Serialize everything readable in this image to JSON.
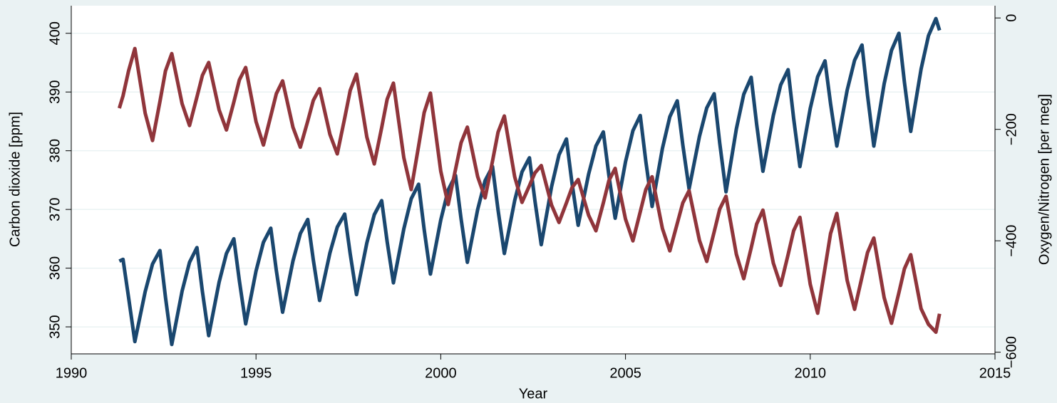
{
  "chart_data": {
    "type": "line",
    "x_label": "Year",
    "y_label": "Carbon dioxide [ppm]",
    "y2_label": "Oxygen/Nitrogen [per meg]",
    "x": [
      1991.3,
      1991.4,
      1991.55,
      1991.72,
      1992,
      1992.2,
      1992.4,
      1992.55,
      1992.72,
      1993,
      1993.2,
      1993.4,
      1993.55,
      1993.72,
      1994,
      1994.2,
      1994.4,
      1994.55,
      1994.72,
      1995,
      1995.2,
      1995.4,
      1995.55,
      1995.72,
      1996,
      1996.2,
      1996.4,
      1996.55,
      1996.72,
      1997,
      1997.2,
      1997.4,
      1997.55,
      1997.72,
      1998,
      1998.2,
      1998.4,
      1998.55,
      1998.72,
      1999,
      1999.2,
      1999.4,
      1999.55,
      1999.72,
      2000,
      2000.2,
      2000.4,
      2000.55,
      2000.72,
      2001,
      2001.2,
      2001.4,
      2001.55,
      2001.72,
      2002,
      2002.2,
      2002.4,
      2002.55,
      2002.72,
      2003,
      2003.2,
      2003.4,
      2003.55,
      2003.72,
      2004,
      2004.2,
      2004.4,
      2004.55,
      2004.72,
      2005,
      2005.2,
      2005.4,
      2005.55,
      2005.72,
      2006,
      2006.2,
      2006.4,
      2006.55,
      2006.72,
      2007,
      2007.2,
      2007.4,
      2007.55,
      2007.72,
      2008,
      2008.2,
      2008.4,
      2008.55,
      2008.72,
      2009,
      2009.2,
      2009.4,
      2009.55,
      2009.72,
      2010,
      2010.2,
      2010.4,
      2010.55,
      2010.72,
      2011,
      2011.2,
      2011.4,
      2011.55,
      2011.72,
      2012,
      2012.2,
      2012.4,
      2012.55,
      2012.72,
      2013,
      2013.2,
      2013.4,
      2013.5
    ],
    "series": [
      {
        "color": "#1a476f",
        "axis": "y",
        "values": [
          361.2,
          361.5,
          355,
          347.5,
          356.0,
          360.7,
          363,
          355,
          347,
          356.1,
          361.0,
          363.5,
          356,
          348.5,
          357.6,
          362.5,
          365,
          357.8,
          350.5,
          359.5,
          364.4,
          366.8,
          359.6,
          352.5,
          361.2,
          365.9,
          368.3,
          361.4,
          354.5,
          362.6,
          367.0,
          369.2,
          362.4,
          355.5,
          364.3,
          369.1,
          371.5,
          364.5,
          357.5,
          366.7,
          371.8,
          374.3,
          366.6,
          359,
          368.2,
          373.3,
          375.8,
          368.4,
          361,
          370.0,
          374.9,
          377.3,
          369.9,
          362.5,
          371.5,
          376.4,
          378.8,
          371.4,
          364,
          373.9,
          379.3,
          382,
          374.6,
          367.3,
          376.0,
          380.8,
          383.2,
          375.8,
          368.5,
          378.1,
          383.4,
          386,
          378.2,
          370.5,
          380.4,
          385.8,
          388.5,
          381,
          373.5,
          382.4,
          387.3,
          389.7,
          381.3,
          373,
          383.7,
          389.6,
          392.5,
          384.5,
          376.5,
          386.0,
          391.2,
          393.8,
          385.5,
          377.3,
          387.2,
          392.6,
          395.3,
          388,
          380.8,
          390.3,
          395.4,
          398,
          389.4,
          380.8,
          391.4,
          397.1,
          400,
          391.6,
          383.3,
          393.9,
          399.6,
          402.5,
          400.5
        ]
      },
      {
        "color": "#90353b",
        "axis": "y2",
        "values": [
          -162,
          -140,
          -95,
          -55,
          -171,
          -220,
          -150,
          -95,
          -64,
          -154,
          -193,
          -142,
          -103,
          -80,
          -165,
          -201,
          -151,
          -111,
          -89,
          -186,
          -228,
          -176,
          -136,
          -113,
          -196,
          -232,
          -185,
          -148,
          -127,
          -209,
          -244,
          -180,
          -130,
          -101,
          -214,
          -262,
          -197,
          -146,
          -117,
          -251,
          -308,
          -230,
          -170,
          -135,
          -275,
          -335,
          -272,
          -224,
          -196,
          -285,
          -323,
          -257,
          -205,
          -176,
          -285,
          -331,
          -301,
          -278,
          -265,
          -336,
          -367,
          -332,
          -305,
          -290,
          -354,
          -382,
          -332,
          -292,
          -270,
          -361,
          -400,
          -348,
          -308,
          -285,
          -378,
          -418,
          -369,
          -332,
          -310,
          -399,
          -437,
          -384,
          -343,
          -320,
          -424,
          -468,
          -413,
          -370,
          -345,
          -440,
          -480,
          -425,
          -382,
          -358,
          -478,
          -530,
          -449,
          -387,
          -351,
          -471,
          -523,
          -465,
          -421,
          -395,
          -502,
          -548,
          -493,
          -450,
          -425,
          -522,
          -550,
          -564,
          -531
        ]
      }
    ],
    "xlim": [
      1990,
      2015
    ],
    "xticks": [
      1990,
      1995,
      2000,
      2005,
      2010,
      2015
    ],
    "ylim": [
      345.4,
      404.7
    ],
    "yticks": [
      350,
      360,
      370,
      380,
      390,
      400
    ],
    "y2lim": [
      -603,
      22
    ],
    "y2ticks": [
      {
        "value": -600,
        "label": "−600"
      },
      {
        "value": -400,
        "label": "−400"
      },
      {
        "value": -200,
        "label": "−200"
      },
      0
    ],
    "grid": true
  }
}
